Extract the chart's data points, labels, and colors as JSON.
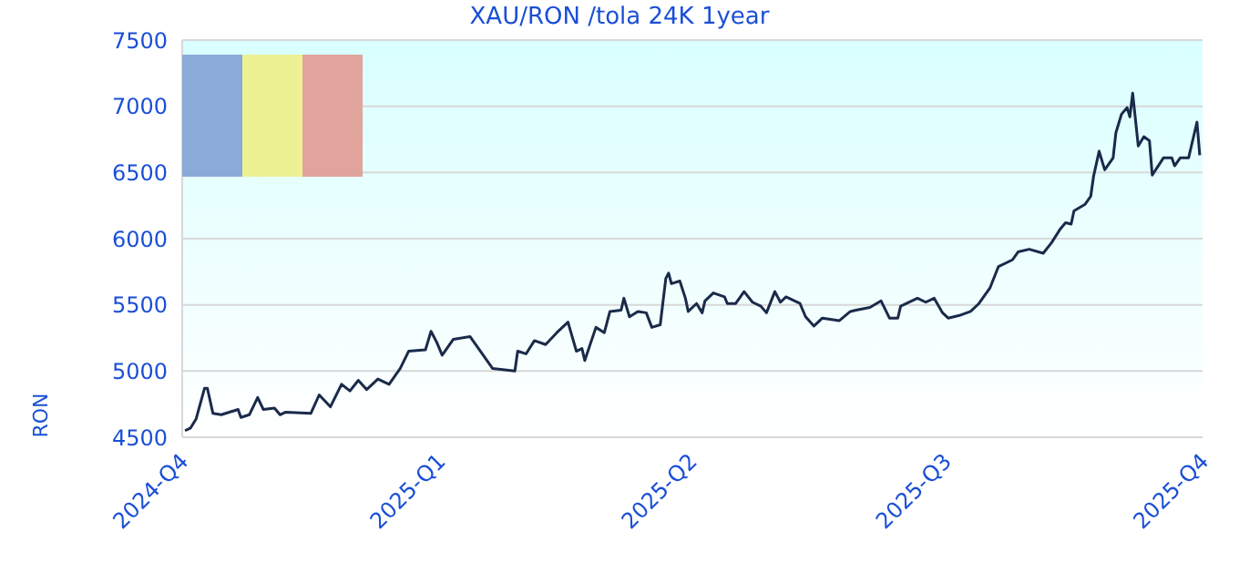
{
  "chart_data": {
    "type": "line",
    "title": "XAU/RON /tola 24K 1year",
    "ylabel": "RON",
    "x": [
      "2024-10-02",
      "2024-10-04",
      "2024-10-06",
      "2024-10-09",
      "2024-10-10",
      "2024-10-12",
      "2024-10-15",
      "2024-10-21",
      "2024-10-22",
      "2024-10-25",
      "2024-10-28",
      "2024-10-30",
      "2024-11-03",
      "2024-11-05",
      "2024-11-07",
      "2024-11-16",
      "2024-11-19",
      "2024-11-23",
      "2024-11-27",
      "2024-11-30",
      "2024-12-03",
      "2024-12-06",
      "2024-12-10",
      "2024-12-14",
      "2024-12-18",
      "2024-12-21",
      "2024-12-27",
      "2024-12-29",
      "2024-12-31",
      "2025-01-02",
      "2025-01-06",
      "2025-01-12",
      "2025-01-15",
      "2025-01-20",
      "2025-01-28",
      "2025-01-29",
      "2025-02-01",
      "2025-02-04",
      "2025-02-08",
      "2025-02-12",
      "2025-02-16",
      "2025-02-19",
      "2025-02-21",
      "2025-02-22",
      "2025-02-26",
      "2025-03-01",
      "2025-03-03",
      "2025-03-07",
      "2025-03-08",
      "2025-03-10",
      "2025-03-13",
      "2025-03-16",
      "2025-03-18",
      "2025-03-21",
      "2025-03-23",
      "2025-03-24",
      "2025-03-25",
      "2025-03-28",
      "2025-03-30",
      "2025-03-31",
      "2025-04-03",
      "2025-04-05",
      "2025-04-06",
      "2025-04-09",
      "2025-04-13",
      "2025-04-14",
      "2025-04-17",
      "2025-04-20",
      "2025-04-23",
      "2025-04-26",
      "2025-04-28",
      "2025-05-01",
      "2025-05-03",
      "2025-05-05",
      "2025-05-10",
      "2025-05-12",
      "2025-05-15",
      "2025-05-18",
      "2025-05-24",
      "2025-05-28",
      "2025-05-30",
      "2025-06-04",
      "2025-06-08",
      "2025-06-11",
      "2025-06-14",
      "2025-06-15",
      "2025-06-21",
      "2025-06-24",
      "2025-06-27",
      "2025-06-30",
      "2025-07-02",
      "2025-07-06",
      "2025-07-10",
      "2025-07-13",
      "2025-07-17",
      "2025-07-20",
      "2025-07-25",
      "2025-07-27",
      "2025-07-31",
      "2025-08-05",
      "2025-08-08",
      "2025-08-11",
      "2025-08-13",
      "2025-08-15",
      "2025-08-16",
      "2025-08-20",
      "2025-08-22",
      "2025-08-23",
      "2025-08-25",
      "2025-08-27",
      "2025-08-30",
      "2025-08-31",
      "2025-09-02",
      "2025-09-04",
      "2025-09-05",
      "2025-09-06",
      "2025-09-08",
      "2025-09-10",
      "2025-09-12",
      "2025-09-13",
      "2025-09-17",
      "2025-09-20",
      "2025-09-21",
      "2025-09-23",
      "2025-09-26",
      "2025-09-27",
      "2025-09-29",
      "2025-09-30"
    ],
    "series": [
      {
        "color": "#1a2a4a",
        "values": [
          4550,
          4570,
          4640,
          4870,
          4870,
          4680,
          4670,
          4710,
          4650,
          4670,
          4800,
          4710,
          4720,
          4670,
          4690,
          4680,
          4820,
          4730,
          4900,
          4850,
          4930,
          4860,
          4940,
          4900,
          5020,
          5150,
          5160,
          5300,
          5220,
          5120,
          5240,
          5260,
          5170,
          5020,
          5000,
          5150,
          5130,
          5230,
          5200,
          5290,
          5370,
          5150,
          5170,
          5080,
          5330,
          5290,
          5450,
          5460,
          5550,
          5410,
          5450,
          5440,
          5330,
          5350,
          5700,
          5740,
          5660,
          5680,
          5550,
          5450,
          5510,
          5440,
          5530,
          5590,
          5560,
          5510,
          5510,
          5600,
          5520,
          5490,
          5440,
          5600,
          5520,
          5560,
          5510,
          5410,
          5340,
          5400,
          5380,
          5450,
          5460,
          5480,
          5530,
          5400,
          5400,
          5490,
          5550,
          5520,
          5550,
          5440,
          5400,
          5420,
          5450,
          5510,
          5630,
          5790,
          5840,
          5900,
          5920,
          5890,
          5970,
          6070,
          6120,
          6110,
          6210,
          6260,
          6320,
          6470,
          6660,
          6520,
          6610,
          6800,
          6940,
          6990,
          6920,
          7100,
          6700,
          6770,
          6740,
          6480,
          6610,
          6610,
          6550,
          6610,
          6610,
          6700,
          6880,
          6630
        ]
      }
    ],
    "xlim": [
      "2024-10-01",
      "2025-10-01"
    ],
    "xticks": [
      {
        "value": "2024-10-01",
        "label": "2024-Q4"
      },
      {
        "value": "2025-01-01",
        "label": "2025-Q1"
      },
      {
        "value": "2025-04-01",
        "label": "2025-Q2"
      },
      {
        "value": "2025-07-01",
        "label": "2025-Q3"
      },
      {
        "value": "2025-10-01",
        "label": "2025-Q4"
      }
    ],
    "ylim": [
      4500,
      7500
    ],
    "yticks": [
      4500,
      5000,
      5500,
      6000,
      6500,
      7000,
      7500
    ],
    "grid": "y",
    "marker": "none",
    "line_style": "solid"
  }
}
